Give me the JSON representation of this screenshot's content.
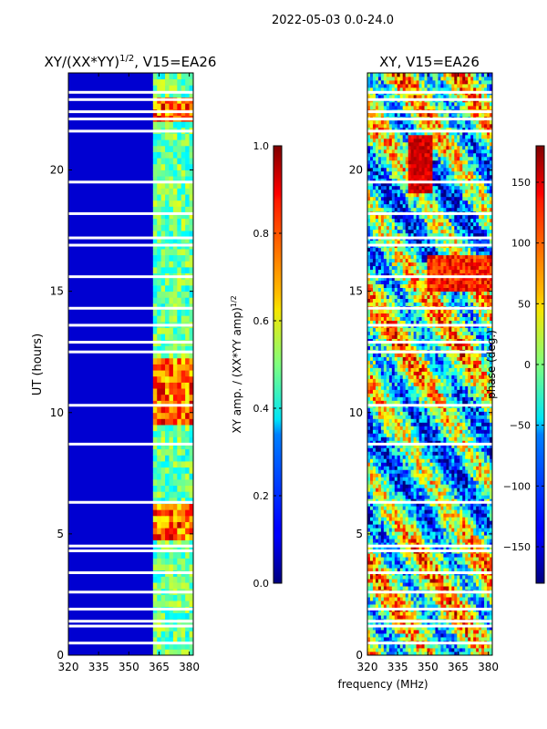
{
  "figure_title": "2022-05-03 0.0-24.0",
  "chart_data": [
    {
      "type": "heatmap",
      "title": "XY/(XX*YY)",
      "title_superscript": "1/2",
      "title_suffix": ", V15=EA26",
      "xlabel": "",
      "ylabel": "UT (hours)",
      "xlim": [
        320,
        382
      ],
      "ylim": [
        0,
        24
      ],
      "xticks": [
        320,
        335,
        350,
        365,
        380
      ],
      "yticks": [
        0,
        5,
        10,
        15,
        20
      ],
      "colorbar": {
        "label": "XY amp. / (XX*YY amp)",
        "label_superscript": "1/2",
        "vmin": 0.0,
        "vmax": 1.0,
        "ticks": [
          0.0,
          0.2,
          0.4,
          0.6,
          0.8,
          1.0
        ],
        "tick_labels": [
          "0.0",
          "0.2",
          "0.4",
          "0.6",
          "0.8",
          "1.0"
        ]
      },
      "description_values": {
        "background_amplitude": 0.05,
        "high_amplitude_channels_mhz": [
          363,
          366,
          369,
          372,
          375,
          378,
          381
        ],
        "peak_amplitude": 0.9
      }
    },
    {
      "type": "heatmap",
      "title": "XY, V15=EA26",
      "xlabel": "frequency (MHz)",
      "ylabel": "",
      "xlim": [
        320,
        382
      ],
      "ylim": [
        0,
        24
      ],
      "xticks": [
        320,
        335,
        350,
        365,
        380
      ],
      "yticks": [
        0,
        5,
        10,
        15,
        20
      ],
      "colorbar": {
        "label": "phase (deg.)",
        "vmin": -180,
        "vmax": 180,
        "ticks": [
          -150,
          -100,
          -50,
          0,
          50,
          100,
          150
        ],
        "tick_labels": [
          "−150",
          "−100",
          "−50",
          "0",
          "50",
          "100",
          "150"
        ]
      }
    }
  ],
  "flagged_ut_gaps_hours": [
    0.5,
    1.2,
    1.4,
    1.9,
    2.6,
    3.4,
    4.3,
    4.5,
    6.3,
    8.7,
    10.3,
    12.5,
    12.9,
    13.6,
    14.3,
    15.6,
    16.9,
    17.2,
    18.2,
    19.5,
    21.6,
    22.1,
    22.4,
    22.9,
    23.2
  ]
}
